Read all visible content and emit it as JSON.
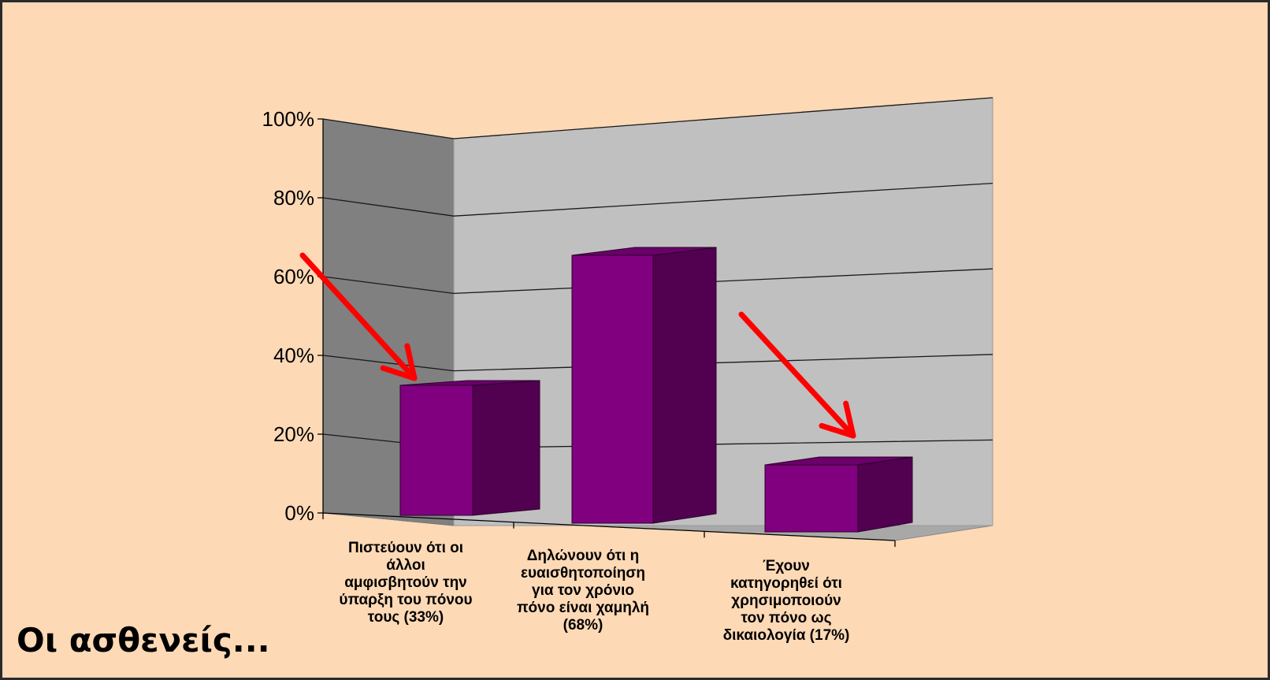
{
  "slide": {
    "caption": "Οι ασθενείς...",
    "background_color": "#fdd9b6"
  },
  "chart_data": {
    "type": "bar",
    "style": "3d-column",
    "categories": [
      "Πιστεύουν ότι οι άλλοι αμφισβητούν την ύπαρξη του πόνου τους (33%)",
      "Δηλώνουν ότι η ευαισθητοποίηση για τον χρόνιο πόνο είναι χαμηλή (68%)",
      "Έχουν κατηγορηθεί ότι χρησιμοποιούν τον πόνο ως δικαιολογία (17%)"
    ],
    "category_label_lines": [
      [
        "Πιστεύουν ότι οι",
        "άλλοι",
        "αμφισβητούν την",
        "ύπαρξη του πόνου",
        "τους (33%)"
      ],
      [
        "Δηλώνουν ότι η",
        "ευαισθητοποίηση",
        "για τον χρόνιο",
        "πόνο είναι χαμηλή",
        "(68%)"
      ],
      [
        "Έχουν",
        "κατηγορηθεί ότι",
        "χρησιμοποιούν",
        "τον πόνο ως",
        "δικαιολογία (17%)"
      ]
    ],
    "values": [
      33,
      68,
      17
    ],
    "ylim": [
      0,
      100
    ],
    "ytick_labels": [
      "0%",
      "20%",
      "40%",
      "60%",
      "80%",
      "100%"
    ],
    "ytick_values": [
      0,
      20,
      40,
      60,
      80,
      100
    ],
    "grid": true,
    "bar_color": "#800080",
    "bar_side_color": "#520050",
    "back_wall_color": "#c0c0c0",
    "side_wall_color": "#808080",
    "floor_color": "#a8a8a8",
    "annotations": [
      {
        "kind": "arrow",
        "color": "#ff0000",
        "points_to": "Πιστεύουν ότι οι άλλοι αμφισβητούν την ύπαρξη του πόνου τους (33%)"
      },
      {
        "kind": "arrow",
        "color": "#ff0000",
        "points_to": "Έχουν κατηγορηθεί ότι χρησιμοποιούν τον πόνο ως δικαιολογία (17%)"
      }
    ]
  }
}
